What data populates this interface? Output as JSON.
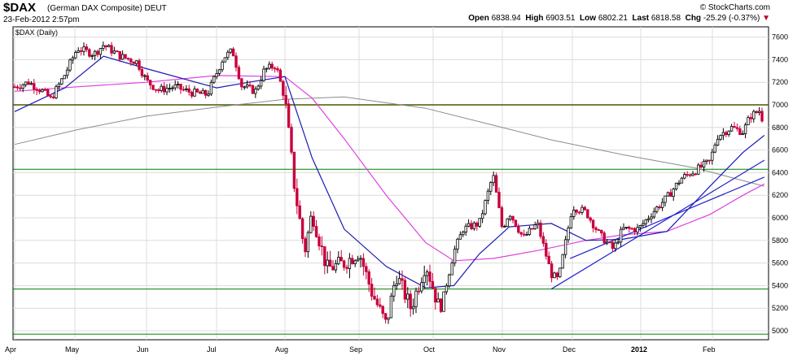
{
  "header": {
    "symbol": "$DAX",
    "description": "(German DAX Composite)",
    "exchange": "DEUT",
    "timestamp": "23-Feb-2012 2:57pm",
    "brand": "© StockCharts.com",
    "open_label": "Open",
    "open_value": "6838.94",
    "high_label": "High",
    "high_value": "6903.51",
    "low_label": "Low",
    "low_value": "6802.21",
    "last_label": "Last",
    "last_value": "6818.58",
    "chg_label": "Chg",
    "chg_value": "-25.29 (-0.37%)",
    "chg_arrow": "▼"
  },
  "chart_data": {
    "type": "candlestick",
    "panel_label": "$DAX (Daily)",
    "y_ticks": [
      5000,
      5200,
      5400,
      5600,
      5800,
      6000,
      6200,
      6400,
      6600,
      6800,
      7000,
      7200,
      7400,
      7600
    ],
    "ylim": [
      4955,
      7650
    ],
    "x_ticks": [
      "Apr",
      "May",
      "Jun",
      "Jul",
      "Aug",
      "Sep",
      "Oct",
      "Nov",
      "Dec",
      "2012",
      "Feb"
    ],
    "grid": true,
    "colors": {
      "up": "#000000",
      "down": "#c8003c",
      "ma_short": "#1a1ab4",
      "ma_mid": "#e040e0",
      "ma_long": "#8c8c8c",
      "resistance": "#e00000",
      "support": "#008000",
      "trendline": "#2020d0"
    },
    "horizontal_lines": [
      {
        "value": 7000,
        "color": "#e00000"
      },
      {
        "value": 7000,
        "color": "#008000"
      },
      {
        "value": 6430,
        "color": "#008000"
      },
      {
        "value": 5370,
        "color": "#008000"
      },
      {
        "value": 4970,
        "color": "#008000"
      }
    ],
    "trendlines": [
      {
        "from": [
          "Nov-22",
          5370
        ],
        "to": [
          "Feb-23",
          6510
        ]
      },
      {
        "from": [
          "Nov-30",
          5640
        ],
        "to": [
          "Feb-23",
          6360
        ]
      }
    ],
    "price_path": [
      [
        "Apr-01",
        7160
      ],
      [
        "Apr-08",
        7200
      ],
      [
        "Apr-15",
        7120
      ],
      [
        "Apr-19",
        7050
      ],
      [
        "Apr-26",
        7270
      ],
      [
        "May-02",
        7500
      ],
      [
        "May-09",
        7450
      ],
      [
        "May-13",
        7530
      ],
      [
        "May-20",
        7430
      ],
      [
        "May-27",
        7380
      ],
      [
        "Jun-01",
        7210
      ],
      [
        "Jun-06",
        7130
      ],
      [
        "Jun-13",
        7160
      ],
      [
        "Jun-20",
        7110
      ],
      [
        "Jun-27",
        7090
      ],
      [
        "Jul-04",
        7420
      ],
      [
        "Jul-08",
        7480
      ],
      [
        "Jul-12",
        7170
      ],
      [
        "Jul-18",
        7120
      ],
      [
        "Jul-22",
        7310
      ],
      [
        "Jul-27",
        7350
      ],
      [
        "Aug-01",
        7050
      ],
      [
        "Aug-05",
        6250
      ],
      [
        "Aug-09",
        5700
      ],
      [
        "Aug-12",
        6050
      ],
      [
        "Aug-18",
        5550
      ],
      [
        "Aug-25",
        5600
      ],
      [
        "Sep-01",
        5700
      ],
      [
        "Sep-06",
        5350
      ],
      [
        "Sep-12",
        5050
      ],
      [
        "Sep-16",
        5500
      ],
      [
        "Sep-22",
        5200
      ],
      [
        "Sep-28",
        5600
      ],
      [
        "Oct-04",
        5170
      ],
      [
        "Oct-10",
        5700
      ],
      [
        "Oct-14",
        5900
      ],
      [
        "Oct-21",
        5950
      ],
      [
        "Oct-27",
        6380
      ],
      [
        "Nov-01",
        5900
      ],
      [
        "Nov-04",
        6050
      ],
      [
        "Nov-10",
        5820
      ],
      [
        "Nov-16",
        5950
      ],
      [
        "Nov-22",
        5500
      ],
      [
        "Nov-25",
        5450
      ],
      [
        "Dec-01",
        6100
      ],
      [
        "Dec-07",
        6050
      ],
      [
        "Dec-13",
        5850
      ],
      [
        "Dec-19",
        5720
      ],
      [
        "Dec-23",
        5900
      ],
      [
        "Dec-30",
        5900
      ],
      [
        "Jan-06",
        6050
      ],
      [
        "Jan-12",
        6180
      ],
      [
        "Jan-18",
        6350
      ],
      [
        "Jan-24",
        6420
      ],
      [
        "Jan-30",
        6500
      ],
      [
        "Feb-03",
        6720
      ],
      [
        "Feb-09",
        6800
      ],
      [
        "Feb-14",
        6760
      ],
      [
        "Feb-17",
        6900
      ],
      [
        "Feb-21",
        6950
      ],
      [
        "Feb-23",
        6818
      ]
    ],
    "ma_short_path": [
      [
        "Apr-01",
        6940
      ],
      [
        "Apr-26",
        7150
      ],
      [
        "May-13",
        7430
      ],
      [
        "Jun-01",
        7320
      ],
      [
        "Jul-01",
        7150
      ],
      [
        "Jul-18",
        7210
      ],
      [
        "Aug-01",
        7250
      ],
      [
        "Aug-12",
        6530
      ],
      [
        "Aug-25",
        5900
      ],
      [
        "Sep-12",
        5570
      ],
      [
        "Sep-28",
        5380
      ],
      [
        "Oct-10",
        5400
      ],
      [
        "Oct-21",
        5680
      ],
      [
        "Nov-04",
        5920
      ],
      [
        "Nov-22",
        5950
      ],
      [
        "Dec-07",
        5800
      ],
      [
        "Dec-23",
        5810
      ],
      [
        "Jan-12",
        5880
      ],
      [
        "Jan-30",
        6280
      ],
      [
        "Feb-14",
        6580
      ],
      [
        "Feb-23",
        6730
      ]
    ],
    "ma_mid_path": [
      [
        "Apr-01",
        7120
      ],
      [
        "May-02",
        7160
      ],
      [
        "Jun-01",
        7200
      ],
      [
        "Jul-01",
        7260
      ],
      [
        "Aug-01",
        7250
      ],
      [
        "Aug-12",
        7060
      ],
      [
        "Aug-25",
        6700
      ],
      [
        "Sep-12",
        6200
      ],
      [
        "Sep-28",
        5780
      ],
      [
        "Oct-10",
        5620
      ],
      [
        "Oct-27",
        5640
      ],
      [
        "Nov-16",
        5710
      ],
      [
        "Dec-07",
        5800
      ],
      [
        "Dec-23",
        5850
      ],
      [
        "Jan-12",
        5880
      ],
      [
        "Jan-30",
        6030
      ],
      [
        "Feb-14",
        6200
      ],
      [
        "Feb-23",
        6300
      ]
    ],
    "ma_long_path": [
      [
        "Apr-01",
        6650
      ],
      [
        "May-02",
        6780
      ],
      [
        "Jun-01",
        6900
      ],
      [
        "Jul-01",
        6980
      ],
      [
        "Aug-01",
        7050
      ],
      [
        "Aug-25",
        7070
      ],
      [
        "Sep-28",
        6970
      ],
      [
        "Oct-27",
        6820
      ],
      [
        "Nov-22",
        6690
      ],
      [
        "Dec-23",
        6560
      ],
      [
        "Jan-24",
        6440
      ],
      [
        "Feb-23",
        6280
      ]
    ]
  }
}
